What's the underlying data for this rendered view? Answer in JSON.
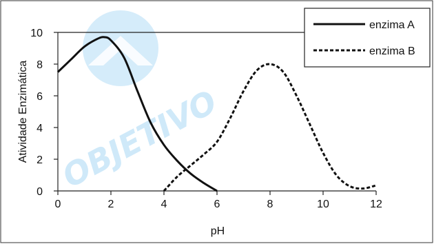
{
  "chart_data": {
    "type": "line",
    "xlabel": "pH",
    "ylabel": "Atividade Enzimática",
    "xlim": [
      0,
      12
    ],
    "ylim": [
      0,
      10
    ],
    "x_ticks": [
      "0",
      "2",
      "4",
      "6",
      "8",
      "10",
      "12"
    ],
    "y_ticks": [
      "0",
      "2",
      "4",
      "6",
      "8",
      "10"
    ],
    "grid": false,
    "legend_position": "top-right",
    "series": [
      {
        "name": "enzima A",
        "style": "solid",
        "color": "#111111",
        "points": [
          [
            0,
            7.5
          ],
          [
            0.5,
            8.3
          ],
          [
            1,
            9.1
          ],
          [
            1.5,
            9.6
          ],
          [
            1.75,
            9.7
          ],
          [
            2,
            9.5
          ],
          [
            2.5,
            8.4
          ],
          [
            3,
            6.3
          ],
          [
            3.5,
            4.3
          ],
          [
            4,
            2.9
          ],
          [
            4.5,
            1.9
          ],
          [
            5,
            1.1
          ],
          [
            5.5,
            0.5
          ],
          [
            6,
            0.0
          ]
        ]
      },
      {
        "name": "enzima B",
        "style": "dashed",
        "color": "#111111",
        "points": [
          [
            4,
            0.0
          ],
          [
            4.5,
            0.9
          ],
          [
            5,
            1.6
          ],
          [
            5.5,
            2.3
          ],
          [
            6,
            3.1
          ],
          [
            6.5,
            4.6
          ],
          [
            7,
            6.3
          ],
          [
            7.5,
            7.6
          ],
          [
            8,
            8.0
          ],
          [
            8.5,
            7.5
          ],
          [
            9,
            6.0
          ],
          [
            9.5,
            4.2
          ],
          [
            10,
            2.4
          ],
          [
            10.5,
            1.0
          ],
          [
            11,
            0.3
          ],
          [
            11.5,
            0.15
          ],
          [
            12,
            0.35
          ]
        ]
      }
    ]
  },
  "watermark": {
    "text": "OBJETIVO",
    "color": "#cfe9f9"
  }
}
